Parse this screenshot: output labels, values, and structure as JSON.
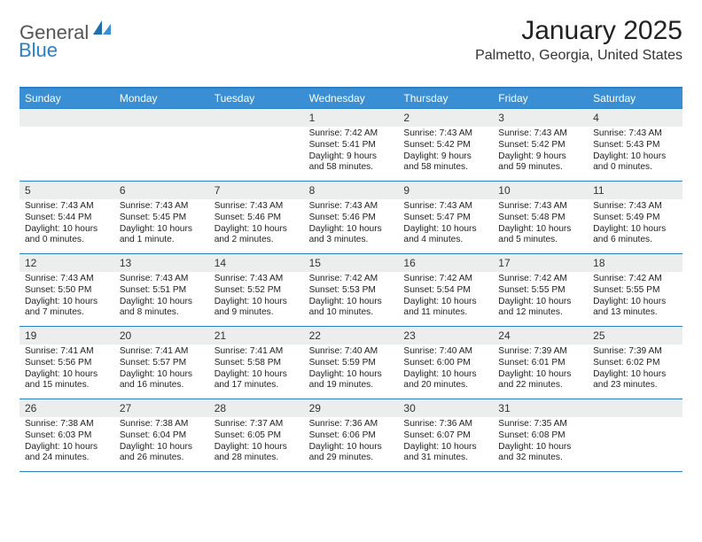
{
  "logo": {
    "text1": "General",
    "text2": "Blue"
  },
  "title": "January 2025",
  "location": "Palmetto, Georgia, United States",
  "colors": {
    "header_bg": "#3a8fd4",
    "border": "#2a7fc9",
    "daynum_bg": "#eceded",
    "text": "#222222",
    "logo_gray": "#555555",
    "logo_blue": "#2a7fc9"
  },
  "day_names": [
    "Sunday",
    "Monday",
    "Tuesday",
    "Wednesday",
    "Thursday",
    "Friday",
    "Saturday"
  ],
  "weeks": [
    [
      {
        "day": "",
        "sunrise": "",
        "sunset": "",
        "daylight": ""
      },
      {
        "day": "",
        "sunrise": "",
        "sunset": "",
        "daylight": ""
      },
      {
        "day": "",
        "sunrise": "",
        "sunset": "",
        "daylight": ""
      },
      {
        "day": "1",
        "sunrise": "Sunrise: 7:42 AM",
        "sunset": "Sunset: 5:41 PM",
        "daylight": "Daylight: 9 hours and 58 minutes."
      },
      {
        "day": "2",
        "sunrise": "Sunrise: 7:43 AM",
        "sunset": "Sunset: 5:42 PM",
        "daylight": "Daylight: 9 hours and 58 minutes."
      },
      {
        "day": "3",
        "sunrise": "Sunrise: 7:43 AM",
        "sunset": "Sunset: 5:42 PM",
        "daylight": "Daylight: 9 hours and 59 minutes."
      },
      {
        "day": "4",
        "sunrise": "Sunrise: 7:43 AM",
        "sunset": "Sunset: 5:43 PM",
        "daylight": "Daylight: 10 hours and 0 minutes."
      }
    ],
    [
      {
        "day": "5",
        "sunrise": "Sunrise: 7:43 AM",
        "sunset": "Sunset: 5:44 PM",
        "daylight": "Daylight: 10 hours and 0 minutes."
      },
      {
        "day": "6",
        "sunrise": "Sunrise: 7:43 AM",
        "sunset": "Sunset: 5:45 PM",
        "daylight": "Daylight: 10 hours and 1 minute."
      },
      {
        "day": "7",
        "sunrise": "Sunrise: 7:43 AM",
        "sunset": "Sunset: 5:46 PM",
        "daylight": "Daylight: 10 hours and 2 minutes."
      },
      {
        "day": "8",
        "sunrise": "Sunrise: 7:43 AM",
        "sunset": "Sunset: 5:46 PM",
        "daylight": "Daylight: 10 hours and 3 minutes."
      },
      {
        "day": "9",
        "sunrise": "Sunrise: 7:43 AM",
        "sunset": "Sunset: 5:47 PM",
        "daylight": "Daylight: 10 hours and 4 minutes."
      },
      {
        "day": "10",
        "sunrise": "Sunrise: 7:43 AM",
        "sunset": "Sunset: 5:48 PM",
        "daylight": "Daylight: 10 hours and 5 minutes."
      },
      {
        "day": "11",
        "sunrise": "Sunrise: 7:43 AM",
        "sunset": "Sunset: 5:49 PM",
        "daylight": "Daylight: 10 hours and 6 minutes."
      }
    ],
    [
      {
        "day": "12",
        "sunrise": "Sunrise: 7:43 AM",
        "sunset": "Sunset: 5:50 PM",
        "daylight": "Daylight: 10 hours and 7 minutes."
      },
      {
        "day": "13",
        "sunrise": "Sunrise: 7:43 AM",
        "sunset": "Sunset: 5:51 PM",
        "daylight": "Daylight: 10 hours and 8 minutes."
      },
      {
        "day": "14",
        "sunrise": "Sunrise: 7:43 AM",
        "sunset": "Sunset: 5:52 PM",
        "daylight": "Daylight: 10 hours and 9 minutes."
      },
      {
        "day": "15",
        "sunrise": "Sunrise: 7:42 AM",
        "sunset": "Sunset: 5:53 PM",
        "daylight": "Daylight: 10 hours and 10 minutes."
      },
      {
        "day": "16",
        "sunrise": "Sunrise: 7:42 AM",
        "sunset": "Sunset: 5:54 PM",
        "daylight": "Daylight: 10 hours and 11 minutes."
      },
      {
        "day": "17",
        "sunrise": "Sunrise: 7:42 AM",
        "sunset": "Sunset: 5:55 PM",
        "daylight": "Daylight: 10 hours and 12 minutes."
      },
      {
        "day": "18",
        "sunrise": "Sunrise: 7:42 AM",
        "sunset": "Sunset: 5:55 PM",
        "daylight": "Daylight: 10 hours and 13 minutes."
      }
    ],
    [
      {
        "day": "19",
        "sunrise": "Sunrise: 7:41 AM",
        "sunset": "Sunset: 5:56 PM",
        "daylight": "Daylight: 10 hours and 15 minutes."
      },
      {
        "day": "20",
        "sunrise": "Sunrise: 7:41 AM",
        "sunset": "Sunset: 5:57 PM",
        "daylight": "Daylight: 10 hours and 16 minutes."
      },
      {
        "day": "21",
        "sunrise": "Sunrise: 7:41 AM",
        "sunset": "Sunset: 5:58 PM",
        "daylight": "Daylight: 10 hours and 17 minutes."
      },
      {
        "day": "22",
        "sunrise": "Sunrise: 7:40 AM",
        "sunset": "Sunset: 5:59 PM",
        "daylight": "Daylight: 10 hours and 19 minutes."
      },
      {
        "day": "23",
        "sunrise": "Sunrise: 7:40 AM",
        "sunset": "Sunset: 6:00 PM",
        "daylight": "Daylight: 10 hours and 20 minutes."
      },
      {
        "day": "24",
        "sunrise": "Sunrise: 7:39 AM",
        "sunset": "Sunset: 6:01 PM",
        "daylight": "Daylight: 10 hours and 22 minutes."
      },
      {
        "day": "25",
        "sunrise": "Sunrise: 7:39 AM",
        "sunset": "Sunset: 6:02 PM",
        "daylight": "Daylight: 10 hours and 23 minutes."
      }
    ],
    [
      {
        "day": "26",
        "sunrise": "Sunrise: 7:38 AM",
        "sunset": "Sunset: 6:03 PM",
        "daylight": "Daylight: 10 hours and 24 minutes."
      },
      {
        "day": "27",
        "sunrise": "Sunrise: 7:38 AM",
        "sunset": "Sunset: 6:04 PM",
        "daylight": "Daylight: 10 hours and 26 minutes."
      },
      {
        "day": "28",
        "sunrise": "Sunrise: 7:37 AM",
        "sunset": "Sunset: 6:05 PM",
        "daylight": "Daylight: 10 hours and 28 minutes."
      },
      {
        "day": "29",
        "sunrise": "Sunrise: 7:36 AM",
        "sunset": "Sunset: 6:06 PM",
        "daylight": "Daylight: 10 hours and 29 minutes."
      },
      {
        "day": "30",
        "sunrise": "Sunrise: 7:36 AM",
        "sunset": "Sunset: 6:07 PM",
        "daylight": "Daylight: 10 hours and 31 minutes."
      },
      {
        "day": "31",
        "sunrise": "Sunrise: 7:35 AM",
        "sunset": "Sunset: 6:08 PM",
        "daylight": "Daylight: 10 hours and 32 minutes."
      },
      {
        "day": "",
        "sunrise": "",
        "sunset": "",
        "daylight": ""
      }
    ]
  ]
}
